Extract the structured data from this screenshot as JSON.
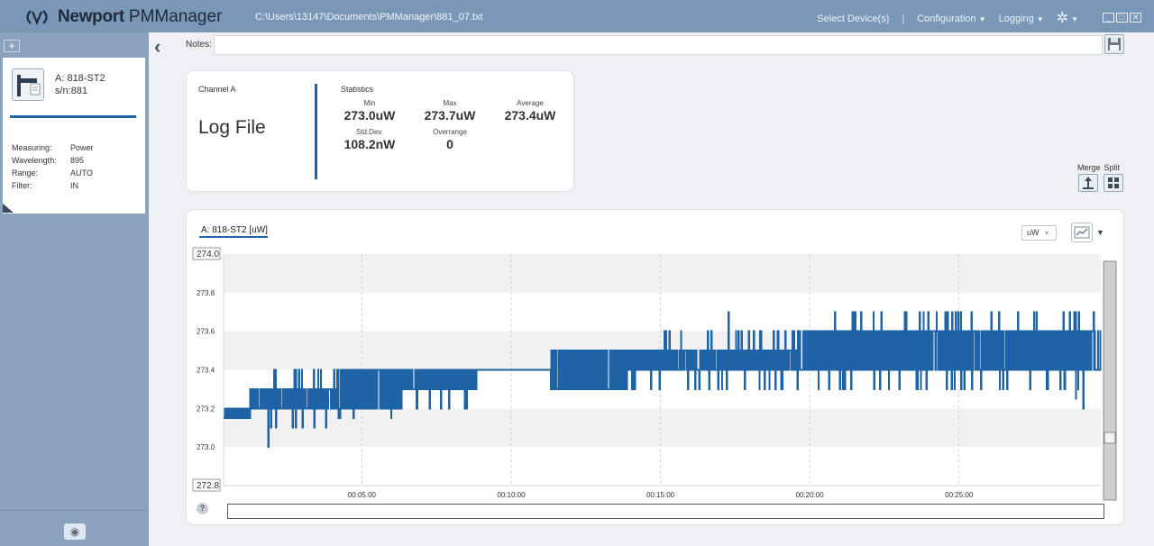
{
  "app": {
    "brand": "Newport",
    "app_name": "PMManager",
    "file_path": "C:\\Users\\13147\\Documents\\PMManager\\881_07.txt"
  },
  "menu": {
    "select_device": "Select Device(s)",
    "separator": "|",
    "configuration": "Configuration",
    "logging": "Logging"
  },
  "sidebar": {
    "add_symbol": "+",
    "device": {
      "name": "A: 818-ST2",
      "serial": "s/n:881",
      "properties": [
        {
          "key": "Measuring:",
          "value": "Power"
        },
        {
          "key": "Wavelength:",
          "value": "895"
        },
        {
          "key": "Range:",
          "value": "AUTO"
        },
        {
          "key": "Filter:",
          "value": "IN"
        }
      ]
    }
  },
  "notes": {
    "label": "Notes:",
    "value": ""
  },
  "info_card": {
    "channel": "Channel A",
    "title": "Log File",
    "statistics_label": "Statistics",
    "stats": {
      "min_label": "Min",
      "min_value": "273.0uW",
      "max_label": "Max",
      "max_value": "273.7uW",
      "avg_label": "Average",
      "avg_value": "273.4uW",
      "std_label": "Std.Dev.",
      "std_value": "108.2nW",
      "over_label": "Overrange",
      "over_value": "0"
    }
  },
  "view_controls": {
    "merge_label": "Merge",
    "split_label": "Split"
  },
  "chart": {
    "unit_selected": "uW",
    "help": "?"
  },
  "colors": {
    "accent": "#1d63a6",
    "titlebar": "#7b97b8",
    "sidebar": "#8aa2bd"
  },
  "chart_data": {
    "type": "line",
    "series": [
      {
        "name": "A: 818-ST2 [uW]"
      }
    ],
    "ylim": [
      272.8,
      274.0
    ],
    "y_ticks": [
      "274.0",
      "273.8",
      "273.6",
      "273.4",
      "273.2",
      "273.0",
      "272.8"
    ],
    "x_ticks": [
      "00:05:00",
      "00:10:00",
      "00:15:00",
      "00:20:00",
      "00:25:00"
    ],
    "x_tick_seconds": [
      300,
      600,
      900,
      1200,
      1500
    ],
    "xlim_seconds": [
      22,
      1785
    ],
    "segments": [
      {
        "t0": 22,
        "t1": 75,
        "base": 273.15,
        "hi": 273.2
      },
      {
        "t0": 75,
        "t1": 110,
        "base": 273.2,
        "hi": 273.3
      },
      {
        "t0": 110,
        "t1": 250,
        "base": 273.2,
        "hi": 273.3,
        "spikes_hi": 273.4,
        "spikes_lo": 273.1
      },
      {
        "t0": 250,
        "t1": 380,
        "base": 273.2,
        "hi": 273.4,
        "spikes_lo": 273.15
      },
      {
        "t0": 380,
        "t1": 530,
        "base": 273.3,
        "hi": 273.4,
        "spikes_lo": 273.2
      },
      {
        "t0": 530,
        "t1": 680,
        "base": 273.4,
        "hi": 273.4
      },
      {
        "t0": 680,
        "t1": 830,
        "base": 273.3,
        "hi": 273.5,
        "spikes_lo": 273.3
      },
      {
        "t0": 830,
        "t1": 1180,
        "base": 273.4,
        "hi": 273.5,
        "spikes_hi": 273.6,
        "spikes_lo": 273.3
      },
      {
        "t0": 1180,
        "t1": 1785,
        "base": 273.4,
        "hi": 273.6,
        "spikes_hi": 273.7,
        "spikes_lo": 273.3
      }
    ],
    "outliers": [
      {
        "t": 112,
        "v": 273.0
      },
      {
        "t": 1750,
        "v": 273.2
      },
      {
        "t": 1735,
        "v": 273.25
      },
      {
        "t": 1037,
        "v": 273.7
      },
      {
        "t": 1455,
        "v": 273.7
      },
      {
        "t": 1710,
        "v": 273.7
      }
    ],
    "grid": true
  }
}
